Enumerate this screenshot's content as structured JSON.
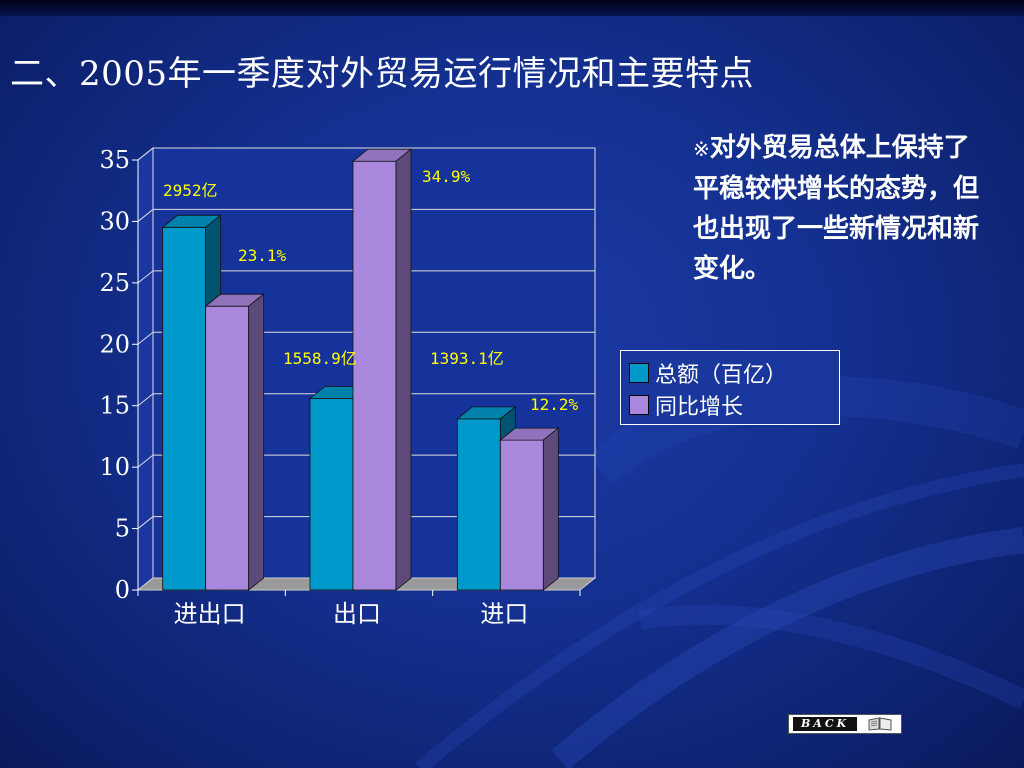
{
  "title": "二、2005年一季度对外贸易运行情况和主要特点",
  "side_text": {
    "mark": "※",
    "body": "对外贸易总体上保持了平稳较快增长的态势，但也出现了一些新情况和新变化。"
  },
  "back_button": {
    "label": "BACK",
    "icon": "book-icon"
  },
  "chart_data": {
    "type": "bar",
    "categories": [
      "进出口",
      "出口",
      "进口"
    ],
    "series": [
      {
        "name": "总额（百亿）",
        "values": [
          29.52,
          15.589,
          13.931
        ],
        "color": "#0099cc"
      },
      {
        "name": "同比增长",
        "values": [
          23.1,
          34.9,
          12.2
        ],
        "color": "#a987dd"
      }
    ],
    "ylim": [
      0,
      35
    ],
    "yticks": [
      0,
      5,
      10,
      15,
      20,
      25,
      30,
      35
    ],
    "grid": true,
    "legend_position": "right",
    "annotations": [
      "2952亿",
      "23.1%",
      "1558.9亿",
      "34.9%",
      "1393.1亿",
      "12.2%"
    ]
  }
}
